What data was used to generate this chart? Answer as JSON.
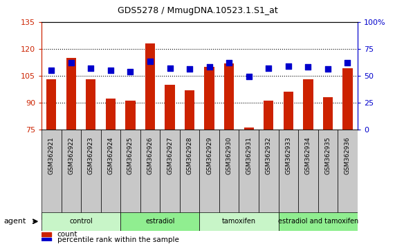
{
  "title": "GDS5278 / MmugDNA.10523.1.S1_at",
  "samples": [
    "GSM362921",
    "GSM362922",
    "GSM362923",
    "GSM362924",
    "GSM362925",
    "GSM362926",
    "GSM362927",
    "GSM362928",
    "GSM362929",
    "GSM362930",
    "GSM362931",
    "GSM362932",
    "GSM362933",
    "GSM362934",
    "GSM362935",
    "GSM362936"
  ],
  "count_values": [
    103,
    115,
    103,
    92,
    91,
    123,
    100,
    97,
    110,
    112,
    76,
    91,
    96,
    103,
    93,
    109
  ],
  "percentile_values": [
    55,
    62,
    57,
    55,
    54,
    63,
    57,
    56,
    58,
    62,
    49,
    57,
    59,
    58,
    56,
    62
  ],
  "group_data": [
    {
      "label": "control",
      "start": 0,
      "end": 4
    },
    {
      "label": "estradiol",
      "start": 4,
      "end": 8
    },
    {
      "label": "tamoxifen",
      "start": 8,
      "end": 12
    },
    {
      "label": "estradiol and tamoxifen",
      "start": 12,
      "end": 16
    }
  ],
  "group_colors": [
    "#c8f5c8",
    "#90EE90",
    "#c8f5c8",
    "#90EE90"
  ],
  "ylim_left": [
    75,
    135
  ],
  "ylim_right": [
    0,
    100
  ],
  "yticks_left": [
    75,
    90,
    105,
    120,
    135
  ],
  "yticks_right": [
    0,
    25,
    50,
    75,
    100
  ],
  "bar_color": "#CC2200",
  "dot_color": "#0000CC",
  "bar_bottom": 75,
  "bar_width": 0.5,
  "dot_size": 40,
  "background_color": "#FFFFFF",
  "label_bg_color": "#C8C8C8",
  "agent_label": "agent"
}
